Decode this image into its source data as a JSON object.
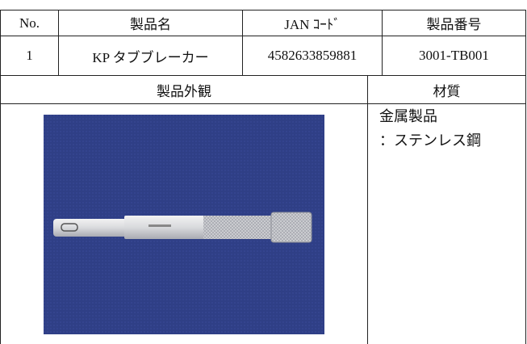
{
  "table": {
    "header": [
      "No.",
      "製品名",
      "JAN ｺｰﾄﾞ",
      "製品番号"
    ],
    "rows": [
      [
        "1",
        "KP タブブレーカー",
        "4582633859881",
        "3001-TB001"
      ]
    ],
    "section_headers": [
      "製品外観",
      "材質"
    ],
    "material": [
      "金属製品",
      "：ステンレス鋼"
    ]
  }
}
